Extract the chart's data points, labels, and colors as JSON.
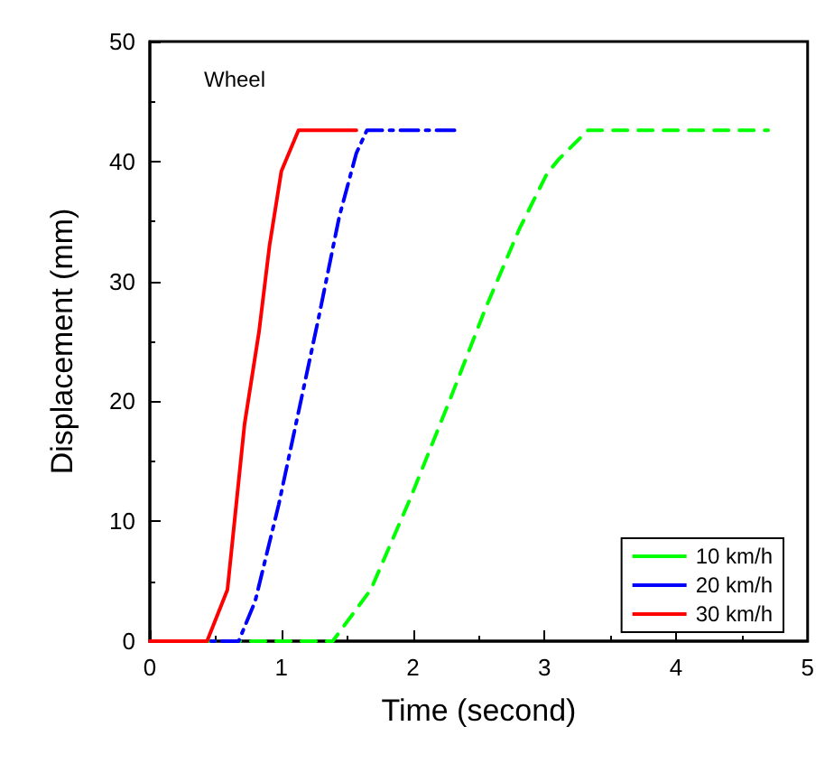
{
  "chart_data": {
    "type": "line",
    "xlabel": "Time (second)",
    "ylabel": "Displacement (mm)",
    "annotations": [
      "Wheel"
    ],
    "xlim": [
      0,
      5
    ],
    "xticks": [
      0,
      1,
      2,
      3,
      4,
      5
    ],
    "ylim": [
      0,
      50
    ],
    "yticks": [
      0,
      10,
      20,
      30,
      40,
      50
    ],
    "grid": false,
    "legend": "bottom right",
    "marker": "none",
    "series": [
      {
        "name": "10 km/h",
        "color": "#00ff00",
        "line_style": "dashed",
        "x": [
          0,
          1.39,
          1.68,
          1.98,
          2.28,
          2.55,
          2.81,
          3.02,
          3.11,
          3.33,
          4.7
        ],
        "values": [
          0,
          0,
          4.3,
          11.9,
          20.1,
          27.7,
          34.4,
          39,
          40.2,
          42.6,
          42.6
        ]
      },
      {
        "name": "20 km/h",
        "color": "#0000ff",
        "line_style": "dashdot",
        "x": [
          0,
          0.675,
          0.8,
          0.98,
          1.13,
          1.28,
          1.44,
          1.57,
          1.65,
          2.35
        ],
        "values": [
          0,
          0,
          3.3,
          11.4,
          19.1,
          26.8,
          35.4,
          40.7,
          42.6,
          42.6
        ]
      },
      {
        "name": "30 km/h",
        "color": "#ff0000",
        "line_style": "solid",
        "x": [
          0,
          0.435,
          0.59,
          0.72,
          0.83,
          0.91,
          1.0,
          1.13,
          1.57
        ],
        "values": [
          0,
          0,
          4.3,
          18.1,
          25.8,
          33,
          39.2,
          42.6,
          42.6
        ]
      }
    ]
  }
}
